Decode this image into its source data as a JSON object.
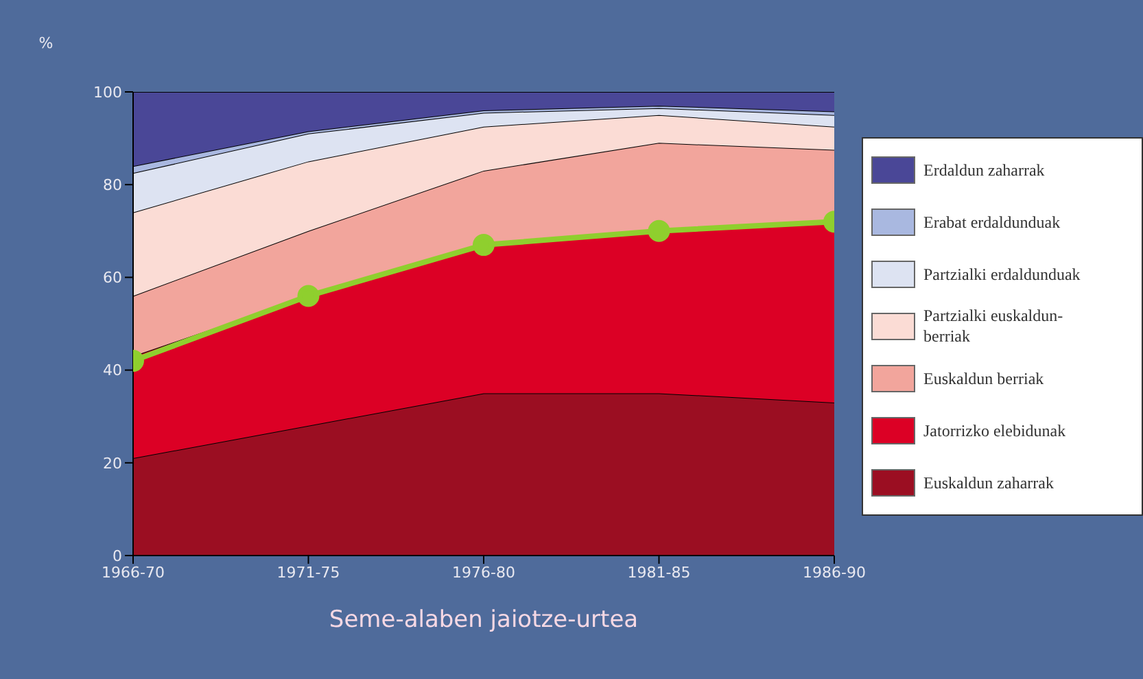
{
  "chart_data": {
    "type": "area",
    "stacked": true,
    "ylabel": "%",
    "xlabel": "Seme-alaben jaiotze-urtea",
    "categories": [
      "1966-70",
      "1971-75",
      "1976-80",
      "1981-85",
      "1986-90"
    ],
    "ylim": [
      0,
      100
    ],
    "yticks": [
      0,
      20,
      40,
      60,
      80,
      100
    ],
    "grid": false,
    "legend": "right",
    "series": [
      {
        "name": "Euskaldun zaharrak",
        "color": "#9b0e22",
        "values": [
          21,
          28,
          35,
          35,
          33
        ]
      },
      {
        "name": "Jatorrizko elebidunak",
        "color": "#dc0025",
        "values": [
          22,
          28,
          32,
          35,
          39
        ]
      },
      {
        "name": "Euskaldun berriak",
        "color": "#f2a59c",
        "values": [
          13,
          14,
          16,
          19,
          15.5
        ]
      },
      {
        "name": "Partzialki euskaldun-berriak",
        "color": "#fbdcd5",
        "values": [
          18,
          15,
          9.5,
          6,
          5
        ]
      },
      {
        "name": "Partzialki erdaldunduak",
        "color": "#dde3f2",
        "values": [
          8.5,
          6,
          3,
          1.5,
          2.5
        ]
      },
      {
        "name": "Erabat erdaldunduak",
        "color": "#a9b8e0",
        "values": [
          1.5,
          0.5,
          0.5,
          0.5,
          0.8
        ]
      },
      {
        "name": "Erdaldun zaharrak",
        "color": "#4a4797",
        "values": [
          16,
          8.5,
          4,
          3,
          4.2
        ]
      },
      {
        "type": "line",
        "color": "#8fcf2e",
        "marker": "circle",
        "values": [
          42,
          56,
          67,
          70,
          72
        ]
      }
    ]
  }
}
